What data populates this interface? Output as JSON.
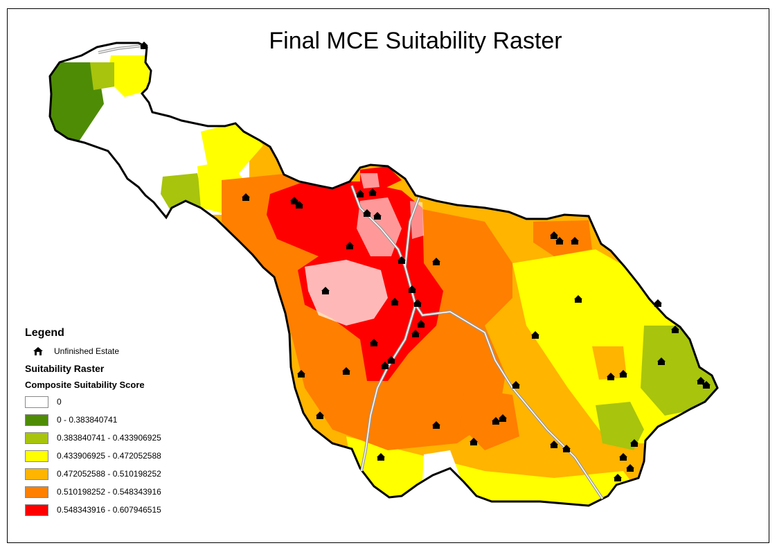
{
  "title": "Final MCE Suitability Raster",
  "legend": {
    "heading": "Legend",
    "point_label": "Unfinished Estate",
    "point_icon": "house-icon",
    "raster_label": "Suitability Raster",
    "field_label": "Composite Suitability Score",
    "classes": [
      {
        "label": "0",
        "color": "#ffffff"
      },
      {
        "label": "0 - 0.383840741",
        "color": "#4e8c05"
      },
      {
        "label": "0.383840741 - 0.433906925",
        "color": "#a8c40c"
      },
      {
        "label": "0.433906925 - 0.472052588",
        "color": "#ffff00"
      },
      {
        "label": "0.472052588 - 0.510198252",
        "color": "#ffb400"
      },
      {
        "label": "0.510198252 - 0.548343916",
        "color": "#ff7f00"
      },
      {
        "label": "0.548343916 - 0.607946515",
        "color": "#ff0000"
      }
    ]
  },
  "colors": {
    "outline": "#000000",
    "road": "#9a9a9a",
    "marker": "#000000"
  }
}
